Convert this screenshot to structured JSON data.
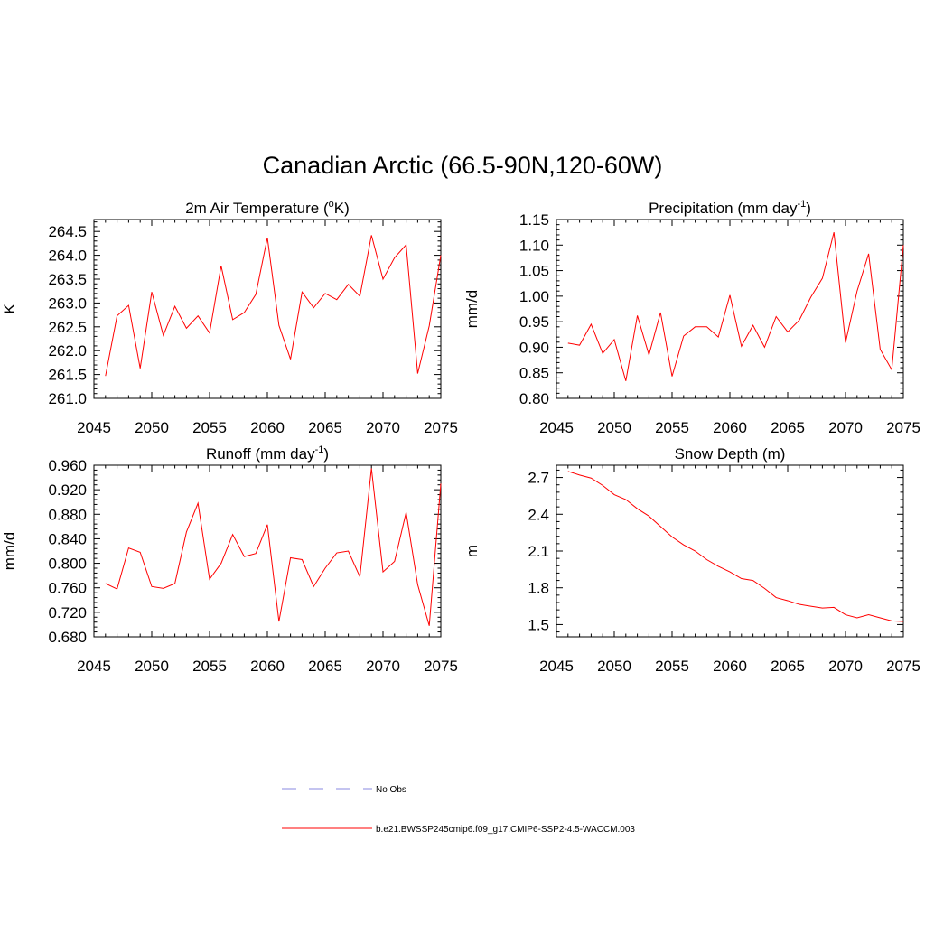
{
  "figure": {
    "title": "Canadian Arctic (66.5-90N,120-60W)",
    "line_color": "#ff0000",
    "legend_obs_color": "#a0a0e6"
  },
  "legend": {
    "placement": "bottom-center",
    "items": [
      {
        "label": "No Obs",
        "style": "dashed",
        "color": "#a0a0e6"
      },
      {
        "label": "b.e21.BWSSP245cmip6.f09_g17.CMIP6-SSP2-4.5-WACCM.003",
        "style": "solid",
        "color": "#ff0000"
      }
    ]
  },
  "chart_data": [
    {
      "type": "line",
      "title_main": "2m Air Temperature (",
      "title_sup": "o",
      "title_after": "K)",
      "xlabel": "",
      "ylabel": "K",
      "xlim": [
        2045,
        2075
      ],
      "ylim": [
        261.0,
        264.75
      ],
      "xticks": [
        2045,
        2050,
        2055,
        2060,
        2065,
        2070,
        2075
      ],
      "xtick_labels": [
        "2045",
        "2050",
        "2055",
        "2060",
        "2065",
        "2070",
        "2075"
      ],
      "yticks": [
        261.0,
        261.5,
        262.0,
        262.5,
        263.0,
        263.5,
        264.0,
        264.5
      ],
      "ytick_labels": [
        "261.0",
        "261.5",
        "262.0",
        "262.5",
        "263.0",
        "263.5",
        "264.0",
        "264.5"
      ],
      "series": [
        {
          "name": "b.e21.BWSSP245cmip6.f09_g17.CMIP6-SSP2-4.5-WACCM.003",
          "x": [
            2046,
            2047,
            2048,
            2049,
            2050,
            2051,
            2052,
            2053,
            2054,
            2055,
            2056,
            2057,
            2058,
            2059,
            2060,
            2061,
            2062,
            2063,
            2064,
            2065,
            2066,
            2067,
            2068,
            2069,
            2070,
            2071,
            2072,
            2073,
            2074,
            2075
          ],
          "values": [
            261.47,
            262.73,
            262.95,
            261.63,
            263.23,
            262.32,
            262.93,
            262.47,
            262.73,
            262.37,
            263.78,
            262.65,
            262.8,
            263.18,
            264.37,
            262.53,
            261.82,
            263.23,
            262.9,
            263.2,
            263.07,
            263.39,
            263.14,
            264.42,
            263.5,
            263.95,
            264.22,
            261.52,
            262.52,
            264.0
          ]
        }
      ]
    },
    {
      "type": "line",
      "title_main": "Precipitation (mm day",
      "title_sup": "-1",
      "title_after": ")",
      "xlabel": "",
      "ylabel": "mm/d",
      "xlim": [
        2045,
        2075
      ],
      "ylim": [
        0.8,
        1.15
      ],
      "xticks": [
        2045,
        2050,
        2055,
        2060,
        2065,
        2070,
        2075
      ],
      "xtick_labels": [
        "2045",
        "2050",
        "2055",
        "2060",
        "2065",
        "2070",
        "2075"
      ],
      "yticks": [
        0.8,
        0.85,
        0.9,
        0.95,
        1.0,
        1.05,
        1.1,
        1.15
      ],
      "ytick_labels": [
        "0.80",
        "0.85",
        "0.90",
        "0.95",
        "1.00",
        "1.05",
        "1.10",
        "1.15"
      ],
      "series": [
        {
          "name": "b.e21.BWSSP245cmip6.f09_g17.CMIP6-SSP2-4.5-WACCM.003",
          "x": [
            2046,
            2047,
            2048,
            2049,
            2050,
            2051,
            2052,
            2053,
            2054,
            2055,
            2056,
            2057,
            2058,
            2059,
            2060,
            2061,
            2062,
            2063,
            2064,
            2065,
            2066,
            2067,
            2068,
            2069,
            2070,
            2071,
            2072,
            2073,
            2074,
            2075
          ],
          "values": [
            0.908,
            0.904,
            0.945,
            0.888,
            0.915,
            0.834,
            0.962,
            0.885,
            0.968,
            0.843,
            0.922,
            0.94,
            0.94,
            0.92,
            1.002,
            0.902,
            0.943,
            0.9,
            0.96,
            0.93,
            0.953,
            0.998,
            1.035,
            1.125,
            0.909,
            1.01,
            1.083,
            0.896,
            0.856,
            1.1
          ]
        }
      ]
    },
    {
      "type": "line",
      "title_main": "Runoff (mm day",
      "title_sup": "-1",
      "title_after": ")",
      "xlabel": "",
      "ylabel": "mm/d",
      "xlim": [
        2045,
        2075
      ],
      "ylim": [
        0.68,
        0.96
      ],
      "xticks": [
        2045,
        2050,
        2055,
        2060,
        2065,
        2070,
        2075
      ],
      "xtick_labels": [
        "2045",
        "2050",
        "2055",
        "2060",
        "2065",
        "2070",
        "2075"
      ],
      "yticks": [
        0.68,
        0.72,
        0.76,
        0.8,
        0.84,
        0.88,
        0.92,
        0.96
      ],
      "ytick_labels": [
        "0.680",
        "0.720",
        "0.760",
        "0.800",
        "0.840",
        "0.880",
        "0.920",
        "0.960"
      ],
      "series": [
        {
          "name": "b.e21.BWSSP245cmip6.f09_g17.CMIP6-SSP2-4.5-WACCM.003",
          "x": [
            2046,
            2047,
            2048,
            2049,
            2050,
            2051,
            2052,
            2053,
            2054,
            2055,
            2056,
            2057,
            2058,
            2059,
            2060,
            2061,
            2062,
            2063,
            2064,
            2065,
            2066,
            2067,
            2068,
            2069,
            2070,
            2071,
            2072,
            2073,
            2074,
            2075
          ],
          "values": [
            0.767,
            0.758,
            0.825,
            0.818,
            0.762,
            0.759,
            0.767,
            0.851,
            0.898,
            0.774,
            0.8,
            0.847,
            0.811,
            0.816,
            0.863,
            0.705,
            0.809,
            0.806,
            0.762,
            0.792,
            0.817,
            0.82,
            0.778,
            0.955,
            0.786,
            0.803,
            0.883,
            0.765,
            0.698,
            0.93
          ]
        }
      ]
    },
    {
      "type": "line",
      "title_main": "Snow Depth (m)",
      "title_sup": "",
      "title_after": "",
      "xlabel": "",
      "ylabel": "m",
      "xlim": [
        2045,
        2075
      ],
      "ylim": [
        1.4,
        2.8
      ],
      "xticks": [
        2045,
        2050,
        2055,
        2060,
        2065,
        2070,
        2075
      ],
      "xtick_labels": [
        "2045",
        "2050",
        "2055",
        "2060",
        "2065",
        "2070",
        "2075"
      ],
      "yticks": [
        1.5,
        1.8,
        2.1,
        2.4,
        2.7
      ],
      "ytick_labels": [
        "1.5",
        "1.8",
        "2.1",
        "2.4",
        "2.7"
      ],
      "series": [
        {
          "name": "b.e21.BWSSP245cmip6.f09_g17.CMIP6-SSP2-4.5-WACCM.003",
          "x": [
            2046,
            2047,
            2048,
            2049,
            2050,
            2051,
            2052,
            2053,
            2054,
            2055,
            2056,
            2057,
            2058,
            2059,
            2060,
            2061,
            2062,
            2063,
            2064,
            2065,
            2066,
            2067,
            2068,
            2069,
            2070,
            2071,
            2072,
            2073,
            2074,
            2075
          ],
          "values": [
            2.75,
            2.72,
            2.695,
            2.635,
            2.56,
            2.52,
            2.445,
            2.385,
            2.3,
            2.215,
            2.15,
            2.1,
            2.03,
            1.975,
            1.93,
            1.875,
            1.86,
            1.795,
            1.72,
            1.695,
            1.665,
            1.65,
            1.635,
            1.64,
            1.58,
            1.555,
            1.58,
            1.555,
            1.53,
            1.525
          ]
        }
      ]
    }
  ]
}
